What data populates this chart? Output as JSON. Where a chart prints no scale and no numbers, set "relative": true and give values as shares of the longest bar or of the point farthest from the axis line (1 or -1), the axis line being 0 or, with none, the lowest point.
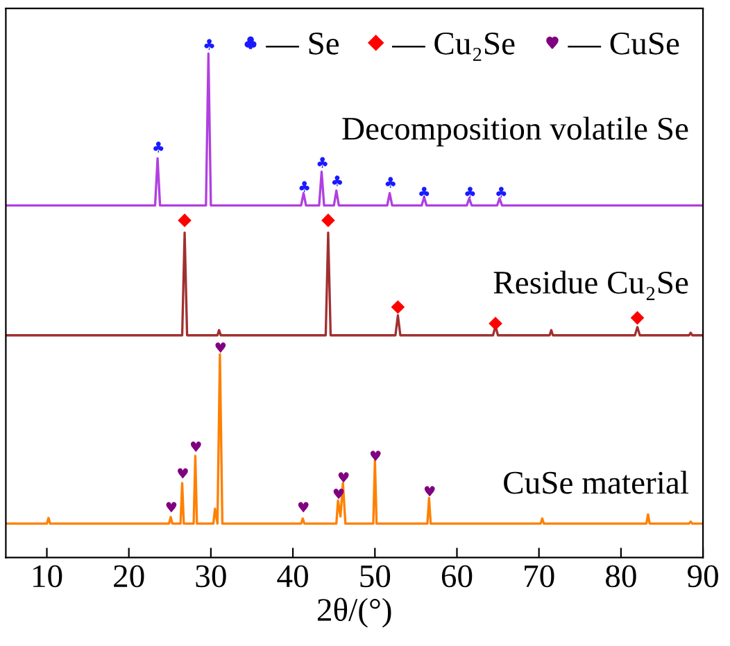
{
  "chart_data": {
    "type": "line",
    "relative": true,
    "xlabel": "2θ/(°)",
    "xlim": [
      5,
      90
    ],
    "xticks": [
      10,
      20,
      30,
      40,
      50,
      60,
      70,
      80,
      90
    ],
    "grid": false,
    "legend": "top right",
    "line_style": "solid",
    "series": [
      {
        "color": "#b040e0",
        "marker": "none",
        "x": [
          5,
          23.2,
          23.5,
          23.8,
          29.4,
          29.7,
          30.0,
          41.0,
          41.3,
          41.6,
          43.2,
          43.5,
          43.8,
          45.0,
          45.3,
          45.6,
          51.5,
          51.8,
          52.1,
          55.7,
          56.0,
          56.3,
          61.2,
          61.5,
          61.8,
          64.9,
          65.2,
          65.5,
          90
        ],
        "values": [
          0.686,
          0.686,
          0.778,
          0.686,
          0.686,
          0.982,
          0.686,
          0.686,
          0.71,
          0.686,
          0.686,
          0.752,
          0.686,
          0.686,
          0.715,
          0.686,
          0.686,
          0.71,
          0.686,
          0.686,
          0.702,
          0.686,
          0.686,
          0.7,
          0.686,
          0.686,
          0.7,
          0.686,
          0.686
        ]
      },
      {
        "color": "#a03030",
        "marker": "none",
        "x": [
          5,
          26.5,
          26.8,
          27.1,
          30.8,
          31.0,
          31.2,
          44.0,
          44.3,
          44.6,
          52.5,
          52.8,
          53.1,
          64.4,
          64.7,
          65.0,
          71.3,
          71.5,
          71.7,
          81.7,
          82.0,
          82.3,
          88.3,
          88.5,
          88.7,
          90
        ],
        "values": [
          0.433,
          0.433,
          0.633,
          0.433,
          0.433,
          0.443,
          0.433,
          0.433,
          0.633,
          0.433,
          0.433,
          0.472,
          0.433,
          0.433,
          0.451,
          0.433,
          0.433,
          0.443,
          0.433,
          0.433,
          0.449,
          0.433,
          0.433,
          0.438,
          0.433,
          0.433
        ]
      },
      {
        "color": "#ff8000",
        "marker": "none",
        "x": [
          5,
          10.0,
          10.2,
          10.4,
          24.9,
          25.1,
          25.3,
          26.3,
          26.5,
          26.7,
          27.9,
          28.1,
          28.3,
          30.3,
          30.5,
          30.8,
          31.1,
          31.4,
          41.0,
          41.2,
          41.4,
          45.3,
          45.5,
          45.8,
          46.1,
          46.4,
          49.8,
          50.0,
          50.2,
          56.4,
          56.6,
          56.8,
          70.2,
          70.4,
          70.6,
          83.1,
          83.3,
          83.5,
          88.3,
          88.5,
          88.7,
          90
        ],
        "values": [
          0.066,
          0.066,
          0.077,
          0.066,
          0.066,
          0.079,
          0.066,
          0.066,
          0.145,
          0.066,
          0.066,
          0.198,
          0.066,
          0.066,
          0.095,
          0.066,
          0.396,
          0.066,
          0.066,
          0.076,
          0.066,
          0.066,
          0.111,
          0.08,
          0.145,
          0.066,
          0.066,
          0.19,
          0.066,
          0.066,
          0.116,
          0.066,
          0.066,
          0.076,
          0.066,
          0.066,
          0.084,
          0.066,
          0.066,
          0.07,
          0.066,
          0.066
        ]
      },
      {
        "type": "scatter",
        "name": "— Se",
        "color": "#1a1aff",
        "x": [
          23.5,
          29.7,
          41.3,
          43.5,
          45.3,
          51.8,
          55.9,
          61.5,
          65.3
        ],
        "values": [
          0.8,
          1.0,
          0.723,
          0.77,
          0.734,
          0.731,
          0.712,
          0.712,
          0.712
        ]
      },
      {
        "type": "scatter",
        "name": "— Cu₂Se",
        "color": "#ff0000",
        "marker": "diamond",
        "x": [
          26.8,
          44.3,
          52.8,
          64.7,
          82.0
        ],
        "values": [
          0.657,
          0.657,
          0.488,
          0.456,
          0.467
        ]
      },
      {
        "type": "scatter",
        "name": "— CuSe",
        "color": "#800080",
        "x": [
          25.1,
          26.5,
          28.1,
          31.1,
          41.2,
          45.5,
          46.1,
          50.0,
          56.6
        ],
        "values": [
          0.098,
          0.164,
          0.216,
          0.409,
          0.098,
          0.124,
          0.156,
          0.198,
          0.129
        ]
      }
    ],
    "annotations": [
      "Decomposition volatile Se",
      "Residue Cu₂Se",
      "CuSe material"
    ]
  }
}
